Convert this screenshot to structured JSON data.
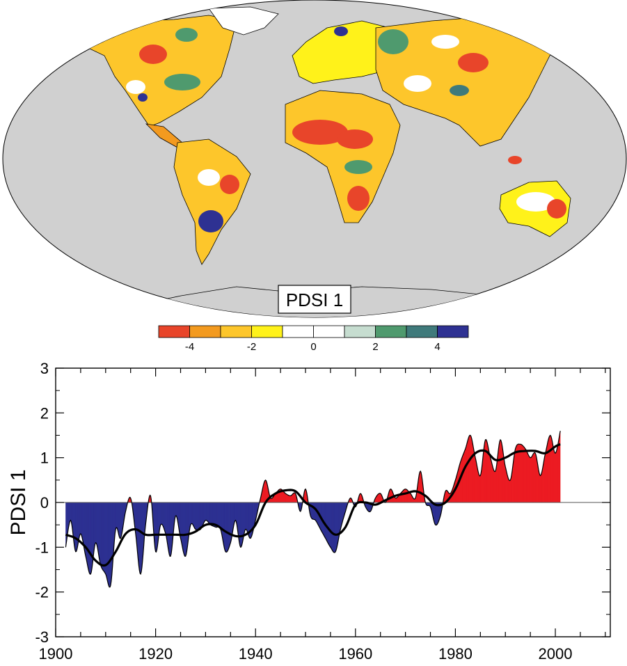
{
  "map": {
    "label": "PDSI 1",
    "ocean_color": "#d0d0d0",
    "land_missing_color": "#d0d0d0"
  },
  "colorbar": {
    "colors": [
      "#e8452a",
      "#f39a1f",
      "#fdc62b",
      "#fff21a",
      "#ffffff",
      "#ffffff",
      "#c6ddd0",
      "#4f9a6e",
      "#3f7a7b",
      "#2e3192"
    ],
    "tick_labels": [
      "-4",
      "-2",
      "0",
      "2",
      "4"
    ]
  },
  "chart_data": {
    "type": "area",
    "title": "",
    "xlabel": "",
    "ylabel": "PDSI 1",
    "xlim": [
      1900,
      2011
    ],
    "ylim": [
      -3,
      3
    ],
    "xticks": [
      1900,
      1920,
      1940,
      1960,
      1980,
      2000
    ],
    "yticks": [
      -3,
      -2,
      -1,
      0,
      1,
      2,
      3
    ],
    "positive_color": "#ec1c24",
    "negative_color": "#2e3192",
    "series": [
      {
        "x": [
          1902,
          1903,
          1904,
          1905,
          1906,
          1907,
          1908,
          1909,
          1910,
          1911,
          1912,
          1913,
          1914,
          1915,
          1916,
          1917,
          1918,
          1919,
          1920,
          1921,
          1922,
          1923,
          1924,
          1925,
          1926,
          1927,
          1928,
          1929,
          1930,
          1931,
          1932,
          1933,
          1934,
          1935,
          1936,
          1937,
          1938,
          1939,
          1940,
          1941,
          1942,
          1943,
          1944,
          1945,
          1946,
          1947,
          1948,
          1949,
          1950,
          1951,
          1952,
          1953,
          1954,
          1955,
          1956,
          1957,
          1958,
          1959,
          1960,
          1961,
          1962,
          1963,
          1964,
          1965,
          1966,
          1967,
          1968,
          1969,
          1970,
          1971,
          1972,
          1973,
          1974,
          1975,
          1976,
          1977,
          1978,
          1979,
          1980,
          1981,
          1982,
          1983,
          1984,
          1985,
          1986,
          1987,
          1988,
          1989,
          1990,
          1991,
          1992,
          1993,
          1994,
          1995,
          1996,
          1997,
          1998,
          1999,
          2000,
          2001
        ],
        "values": [
          -1.0,
          -0.4,
          -1.1,
          -0.7,
          -1.2,
          -1.6,
          -0.9,
          -1.4,
          -1.6,
          -1.85,
          -0.6,
          -0.8,
          -0.2,
          0.1,
          -0.7,
          -1.6,
          -0.5,
          0.15,
          -1.1,
          -0.5,
          -0.7,
          -1.2,
          -0.3,
          -0.8,
          -1.2,
          -0.5,
          -0.6,
          -0.6,
          -0.4,
          -0.5,
          -0.55,
          -0.6,
          -1.1,
          -0.9,
          -0.4,
          -1.0,
          -0.6,
          -0.8,
          -0.4,
          0.1,
          0.5,
          0.1,
          0.2,
          0.3,
          0.2,
          0.15,
          0.2,
          -0.2,
          0.3,
          -0.3,
          -0.4,
          -0.6,
          -0.8,
          -1.0,
          -1.1,
          -0.6,
          -0.2,
          0.1,
          -0.1,
          0.2,
          -0.1,
          -0.2,
          0.1,
          0.2,
          0.0,
          0.3,
          0.1,
          0.2,
          0.3,
          0.2,
          0.1,
          0.7,
          0.0,
          -0.1,
          -0.5,
          -0.3,
          0.25,
          0.2,
          0.5,
          0.9,
          1.2,
          1.5,
          1.0,
          0.6,
          1.4,
          1.0,
          0.7,
          1.4,
          0.8,
          0.5,
          1.2,
          1.3,
          1.2,
          1.0,
          1.1,
          0.6,
          1.1,
          1.5,
          1.1,
          1.6
        ]
      },
      {
        "x": [
          1902,
          1904,
          1906,
          1908,
          1910,
          1912,
          1914,
          1916,
          1918,
          1920,
          1922,
          1924,
          1926,
          1928,
          1930,
          1932,
          1934,
          1936,
          1938,
          1940,
          1942,
          1944,
          1946,
          1948,
          1950,
          1952,
          1954,
          1956,
          1958,
          1960,
          1962,
          1964,
          1966,
          1968,
          1970,
          1972,
          1974,
          1976,
          1978,
          1980,
          1982,
          1984,
          1986,
          1988,
          1990,
          1992,
          1994,
          1996,
          1998,
          2000,
          2001
        ],
        "values": [
          -0.72,
          -0.8,
          -1.0,
          -1.3,
          -1.4,
          -1.1,
          -0.7,
          -0.6,
          -0.72,
          -0.72,
          -0.72,
          -0.72,
          -0.72,
          -0.65,
          -0.5,
          -0.5,
          -0.65,
          -0.75,
          -0.72,
          -0.5,
          0.0,
          0.2,
          0.27,
          0.25,
          0.0,
          -0.15,
          -0.5,
          -0.72,
          -0.55,
          -0.05,
          0.0,
          -0.05,
          0.05,
          0.15,
          0.2,
          0.25,
          0.15,
          -0.05,
          0.0,
          0.3,
          0.8,
          1.1,
          1.15,
          0.95,
          1.0,
          1.12,
          1.15,
          1.15,
          1.1,
          1.25,
          1.3
        ]
      }
    ]
  }
}
